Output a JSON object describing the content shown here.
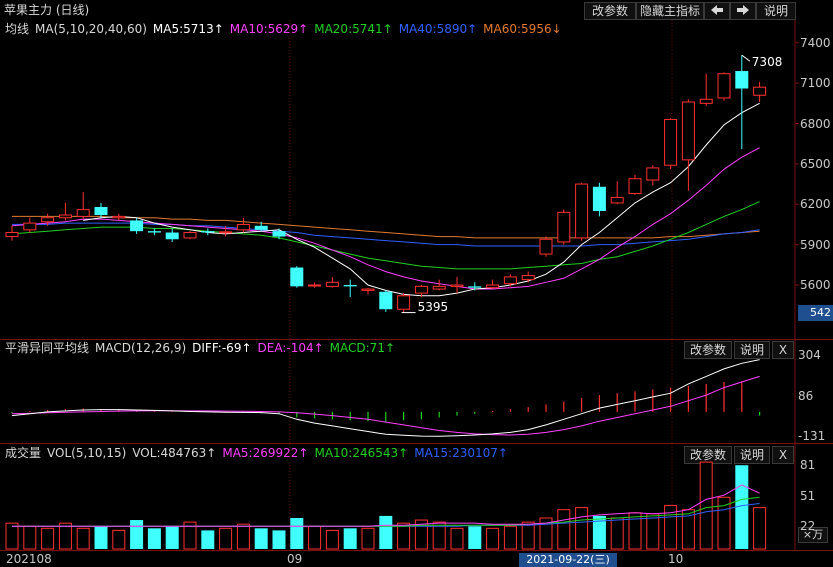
{
  "title": "苹果主力 (日线)",
  "toolbar": {
    "modify_params": "改参数",
    "hide_indicator": "隐藏主指标",
    "prev_icon": "arrow-left",
    "next_icon": "arrow-right",
    "help": "说明"
  },
  "main_panel": {
    "indicator_name": "均线",
    "params": "MA(5,10,20,40,60)",
    "ma5": "MA5:5713↑",
    "ma10": "MA10:5629↑",
    "ma20": "MA20:5741↑",
    "ma40": "MA40:5890↑",
    "ma60": "MA60:5956↓",
    "high_label": "7308",
    "low_label": "5395",
    "price_axis": [
      "7400",
      "7100",
      "6800",
      "6500",
      "6200",
      "5900",
      "5600"
    ],
    "current_price": "542",
    "colors": {
      "ma5": "#ffffff",
      "ma10": "#ff40ff",
      "ma20": "#20d020",
      "ma40": "#3060ff",
      "ma60": "#e07a30",
      "up": "#ff3030",
      "down": "#40ffff"
    }
  },
  "macd_panel": {
    "name": "平滑异同平均线",
    "params": "MACD(12,26,9)",
    "diff": "DIFF:-69↑",
    "dea": "DEA:-104↑",
    "macd": "MACD:71↑",
    "axis": [
      "304",
      "86",
      "-131"
    ],
    "modify_params": "改参数",
    "help": "说明",
    "close": "X"
  },
  "vol_panel": {
    "name": "成交量",
    "params": "VOL(5,10,15)",
    "vol": "VOL:484763↑",
    "ma5": "MA5:269922↑",
    "ma10": "MA10:246543↑",
    "ma15": "MA15:230107↑",
    "axis": [
      "81",
      "51",
      "22"
    ],
    "unit": "×万",
    "modify_params": "改参数",
    "help": "说明",
    "close": "X"
  },
  "time_axis": {
    "labels": [
      "202108",
      "09",
      "10"
    ],
    "cursor_date": "2021-09-22(三)"
  },
  "chart_data": {
    "type": "candlestick",
    "candles": [
      {
        "o": 5960,
        "c": 5990,
        "h": 6040,
        "l": 5930
      },
      {
        "o": 6010,
        "c": 6060,
        "h": 6100,
        "l": 5990
      },
      {
        "o": 6070,
        "c": 6100,
        "h": 6130,
        "l": 6040
      },
      {
        "o": 6100,
        "c": 6120,
        "h": 6210,
        "l": 6080
      },
      {
        "o": 6110,
        "c": 6160,
        "h": 6290,
        "l": 6090
      },
      {
        "o": 6180,
        "c": 6120,
        "h": 6210,
        "l": 6100
      },
      {
        "o": 6100,
        "c": 6110,
        "h": 6130,
        "l": 6080
      },
      {
        "o": 6080,
        "c": 6000,
        "h": 6100,
        "l": 5980
      },
      {
        "o": 6000,
        "c": 5990,
        "h": 6020,
        "l": 5970
      },
      {
        "o": 5990,
        "c": 5940,
        "h": 6020,
        "l": 5920
      },
      {
        "o": 5950,
        "c": 5990,
        "h": 6000,
        "l": 5940
      },
      {
        "o": 6000,
        "c": 5990,
        "h": 6020,
        "l": 5970
      },
      {
        "o": 5990,
        "c": 5995,
        "h": 6040,
        "l": 5960
      },
      {
        "o": 6010,
        "c": 6050,
        "h": 6100,
        "l": 5990
      },
      {
        "o": 6040,
        "c": 6010,
        "h": 6070,
        "l": 6000
      },
      {
        "o": 6000,
        "c": 5960,
        "h": 6020,
        "l": 5940
      },
      {
        "o": 5730,
        "c": 5590,
        "h": 5740,
        "l": 5580
      },
      {
        "o": 5595,
        "c": 5600,
        "h": 5620,
        "l": 5580
      },
      {
        "o": 5590,
        "c": 5620,
        "h": 5660,
        "l": 5580
      },
      {
        "o": 5600,
        "c": 5590,
        "h": 5640,
        "l": 5510
      },
      {
        "o": 5560,
        "c": 5570,
        "h": 5580,
        "l": 5530
      },
      {
        "o": 5550,
        "c": 5420,
        "h": 5560,
        "l": 5400
      },
      {
        "o": 5420,
        "c": 5520,
        "h": 5540,
        "l": 5395
      },
      {
        "o": 5540,
        "c": 5590,
        "h": 5600,
        "l": 5510
      },
      {
        "o": 5570,
        "c": 5590,
        "h": 5640,
        "l": 5560
      },
      {
        "o": 5590,
        "c": 5600,
        "h": 5660,
        "l": 5540
      },
      {
        "o": 5590,
        "c": 5580,
        "h": 5620,
        "l": 5560
      },
      {
        "o": 5580,
        "c": 5600,
        "h": 5640,
        "l": 5570
      },
      {
        "o": 5610,
        "c": 5660,
        "h": 5680,
        "l": 5590
      },
      {
        "o": 5640,
        "c": 5670,
        "h": 5700,
        "l": 5620
      },
      {
        "o": 5830,
        "c": 5940,
        "h": 5960,
        "l": 5810
      },
      {
        "o": 5920,
        "c": 6140,
        "h": 6160,
        "l": 5900
      },
      {
        "o": 5950,
        "c": 6350,
        "h": 6360,
        "l": 5930
      },
      {
        "o": 6330,
        "c": 6150,
        "h": 6360,
        "l": 6110
      },
      {
        "o": 6210,
        "c": 6250,
        "h": 6370,
        "l": 6200
      },
      {
        "o": 6280,
        "c": 6390,
        "h": 6420,
        "l": 6270
      },
      {
        "o": 6380,
        "c": 6470,
        "h": 6490,
        "l": 6340
      },
      {
        "o": 6490,
        "c": 6830,
        "h": 6840,
        "l": 6460
      },
      {
        "o": 6530,
        "c": 6960,
        "h": 6980,
        "l": 6300
      },
      {
        "o": 6950,
        "c": 6980,
        "h": 7170,
        "l": 6930
      },
      {
        "o": 6990,
        "c": 7170,
        "h": 7180,
        "l": 6970
      },
      {
        "o": 7190,
        "c": 7060,
        "h": 7308,
        "l": 6610
      },
      {
        "o": 7010,
        "c": 7070,
        "h": 7110,
        "l": 6960
      }
    ],
    "ma_values": {
      "MA5": [
        null,
        null,
        null,
        null,
        6080,
        6100,
        6110,
        6100,
        6060,
        6030,
        6010,
        5990,
        5980,
        5990,
        6000,
        6010,
        5940,
        5880,
        5800,
        5720,
        5600,
        5560,
        5530,
        5520,
        5520,
        5540,
        5570,
        5580,
        5600,
        5630,
        5680,
        5770,
        5900,
        5990,
        6100,
        6210,
        6290,
        6360,
        6480,
        6640,
        6790,
        6880,
        6950
      ],
      "MA10": [
        6040,
        6050,
        6060,
        6070,
        6090,
        6090,
        6080,
        6070,
        6060,
        6050,
        6040,
        6030,
        6020,
        6010,
        6000,
        5980,
        5950,
        5910,
        5860,
        5810,
        5750,
        5700,
        5660,
        5630,
        5610,
        5590,
        5570,
        5570,
        5580,
        5590,
        5620,
        5650,
        5720,
        5790,
        5880,
        5960,
        6050,
        6130,
        6230,
        6340,
        6460,
        6550,
        6620
      ],
      "MA20": [
        5980,
        5990,
        6000,
        6010,
        6020,
        6030,
        6030,
        6030,
        6020,
        6020,
        6010,
        6000,
        5990,
        5980,
        5970,
        5950,
        5920,
        5890,
        5860,
        5830,
        5800,
        5780,
        5760,
        5740,
        5730,
        5720,
        5720,
        5720,
        5720,
        5730,
        5740,
        5750,
        5760,
        5790,
        5810,
        5850,
        5890,
        5940,
        5990,
        6050,
        6110,
        6160,
        6220
      ],
      "MA40": [
        6050,
        6050,
        6050,
        6060,
        6060,
        6060,
        6060,
        6060,
        6050,
        6050,
        6040,
        6040,
        6030,
        6020,
        6010,
        6000,
        5990,
        5970,
        5960,
        5950,
        5940,
        5930,
        5920,
        5910,
        5900,
        5900,
        5890,
        5890,
        5890,
        5890,
        5890,
        5890,
        5890,
        5900,
        5900,
        5910,
        5920,
        5930,
        5940,
        5960,
        5980,
        5990,
        6010
      ],
      "MA60": [
        6110,
        6110,
        6110,
        6110,
        6110,
        6110,
        6100,
        6100,
        6100,
        6090,
        6090,
        6080,
        6080,
        6070,
        6060,
        6050,
        6040,
        6030,
        6020,
        6010,
        6000,
        5990,
        5980,
        5970,
        5960,
        5960,
        5950,
        5950,
        5950,
        5950,
        5950,
        5950,
        5950,
        5950,
        5950,
        5950,
        5950,
        5960,
        5960,
        5970,
        5980,
        5990,
        6000
      ]
    },
    "macd": {
      "diff": [
        -20,
        -10,
        0,
        5,
        10,
        12,
        12,
        10,
        8,
        5,
        2,
        0,
        -2,
        -3,
        -4,
        -10,
        -40,
        -60,
        -75,
        -90,
        -105,
        -120,
        -125,
        -130,
        -131,
        -128,
        -124,
        -118,
        -110,
        -95,
        -70,
        -40,
        -10,
        20,
        40,
        60,
        80,
        100,
        150,
        190,
        230,
        260,
        280
      ],
      "dea": [
        -10,
        -8,
        -5,
        -2,
        0,
        2,
        4,
        5,
        6,
        6,
        5,
        5,
        4,
        3,
        2,
        0,
        -5,
        -12,
        -20,
        -30,
        -40,
        -55,
        -70,
        -85,
        -100,
        -110,
        -118,
        -122,
        -124,
        -120,
        -110,
        -95,
        -75,
        -50,
        -30,
        -10,
        10,
        30,
        60,
        90,
        130,
        160,
        190
      ],
      "hist": [
        -5,
        5,
        10,
        15,
        18,
        15,
        12,
        8,
        4,
        2,
        0,
        -2,
        -4,
        -6,
        -8,
        -10,
        -30,
        -35,
        -40,
        -45,
        -50,
        -55,
        -45,
        -40,
        -30,
        -20,
        -10,
        5,
        15,
        25,
        40,
        55,
        75,
        90,
        100,
        110,
        120,
        130,
        140,
        150,
        160,
        165,
        -20
      ]
    },
    "volume": {
      "values": [
        25,
        22,
        20,
        25,
        20,
        22,
        18,
        28,
        20,
        22,
        26,
        18,
        20,
        24,
        20,
        18,
        30,
        22,
        18,
        20,
        20,
        32,
        25,
        28,
        26,
        20,
        22,
        20,
        22,
        26,
        30,
        38,
        40,
        32,
        30,
        35,
        34,
        42,
        38,
        84,
        50,
        81,
        40
      ],
      "ma5": [
        22,
        22,
        22,
        22,
        22,
        22,
        22,
        22,
        22,
        22,
        22,
        22,
        22,
        22,
        22,
        22,
        22,
        22,
        22,
        22,
        22,
        23,
        23,
        24,
        25,
        25,
        25,
        24,
        24,
        24,
        25,
        28,
        31,
        33,
        34,
        35,
        34,
        35,
        38,
        48,
        52,
        62,
        54
      ],
      "ma10": [
        22,
        22,
        22,
        22,
        22,
        22,
        22,
        22,
        22,
        22,
        22,
        22,
        22,
        22,
        22,
        22,
        22,
        22,
        22,
        22,
        22,
        22,
        22,
        23,
        23,
        23,
        23,
        23,
        23,
        24,
        25,
        26,
        28,
        29,
        30,
        31,
        32,
        33,
        34,
        40,
        42,
        48,
        50
      ],
      "ma15": [
        22,
        22,
        22,
        22,
        22,
        22,
        22,
        22,
        22,
        22,
        22,
        22,
        22,
        22,
        22,
        22,
        22,
        22,
        22,
        22,
        22,
        22,
        22,
        22,
        22,
        22,
        23,
        23,
        23,
        23,
        24,
        25,
        26,
        27,
        28,
        29,
        30,
        31,
        32,
        36,
        38,
        42,
        44
      ]
    },
    "price_axis_range": [
      5395,
      7400
    ],
    "x_labels": [
      "202108",
      "09",
      "10"
    ]
  }
}
